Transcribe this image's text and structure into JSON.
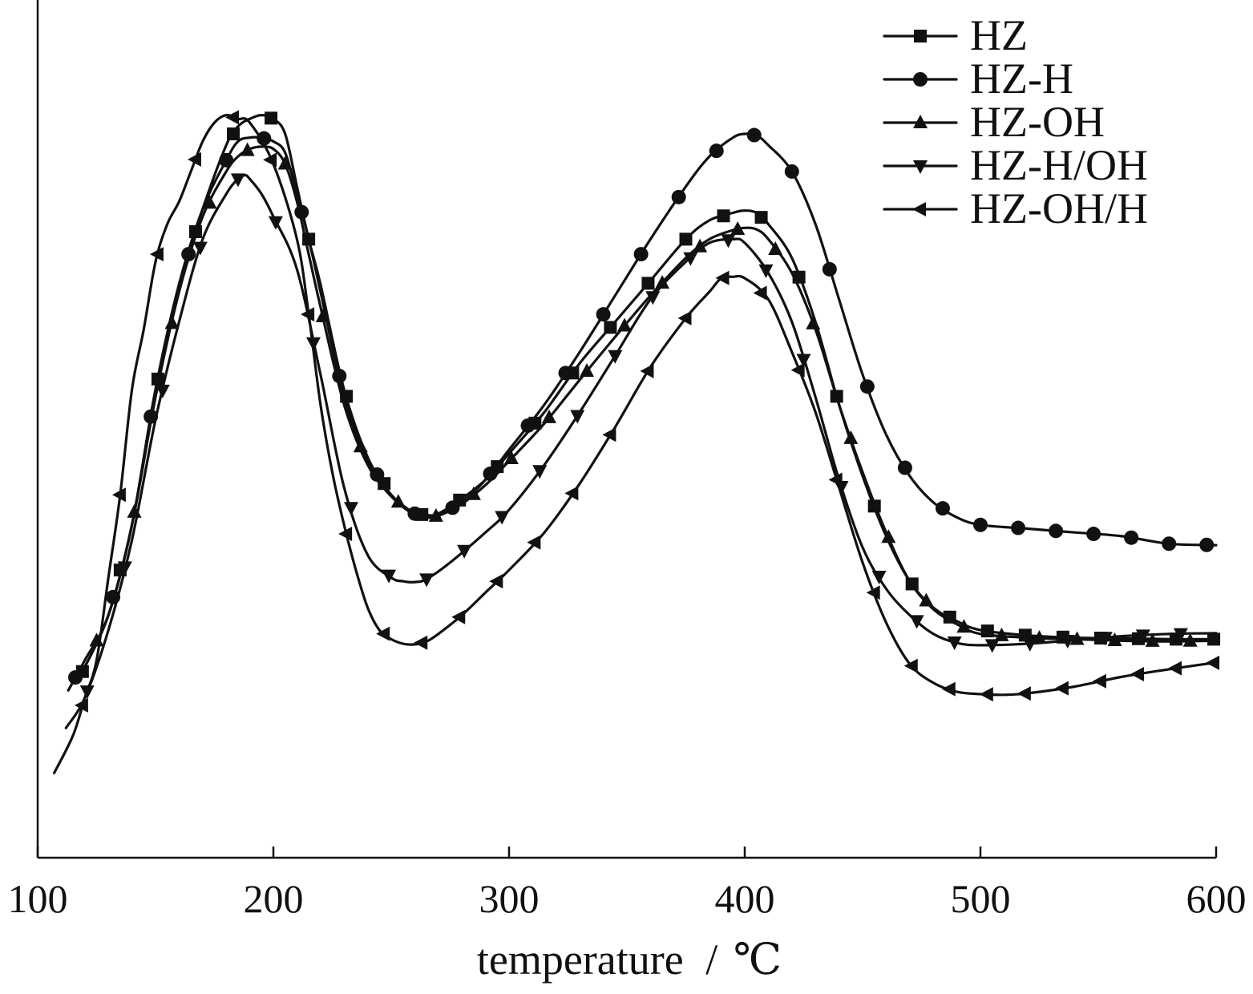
{
  "chart_data": {
    "type": "line",
    "title": "",
    "xlabel": "temperature",
    "xlabel_unit": "℃",
    "ylabel": "",
    "xlim": [
      100,
      600
    ],
    "ylim": [
      0,
      100
    ],
    "xticks": [
      "100",
      "200",
      "300",
      "400",
      "500",
      "600"
    ],
    "grid": false,
    "legend_position": "top-right",
    "series": [
      {
        "name": "HZ",
        "marker": "square",
        "points": [
          [
            119,
            20.5
          ],
          [
            130,
            28
          ],
          [
            140,
            40
          ],
          [
            150,
            58
          ],
          [
            160,
            72
          ],
          [
            170,
            82
          ],
          [
            180,
            90.5
          ],
          [
            185,
            93
          ],
          [
            190,
            94
          ],
          [
            195,
            94.5
          ],
          [
            200,
            94
          ],
          [
            205,
            92
          ],
          [
            210,
            85
          ],
          [
            215,
            78
          ],
          [
            220,
            72
          ],
          [
            230,
            58
          ],
          [
            240,
            49
          ],
          [
            250,
            44
          ],
          [
            260,
            41.5
          ],
          [
            265,
            41.3
          ],
          [
            270,
            41.5
          ],
          [
            280,
            43.5
          ],
          [
            290,
            46
          ],
          [
            300,
            49.5
          ],
          [
            315,
            55
          ],
          [
            330,
            61.5
          ],
          [
            345,
            67
          ],
          [
            360,
            72.5
          ],
          [
            375,
            78
          ],
          [
            385,
            80.5
          ],
          [
            395,
            81.5
          ],
          [
            400,
            81.8
          ],
          [
            405,
            81.5
          ],
          [
            410,
            80
          ],
          [
            420,
            75.5
          ],
          [
            430,
            67
          ],
          [
            440,
            56
          ],
          [
            450,
            46.5
          ],
          [
            460,
            38.5
          ],
          [
            470,
            32.5
          ],
          [
            480,
            29
          ],
          [
            490,
            27.2
          ],
          [
            500,
            26
          ],
          [
            520,
            25.3
          ],
          [
            540,
            25
          ],
          [
            560,
            24.9
          ],
          [
            580,
            24.8
          ],
          [
            600,
            24.8
          ]
        ]
      },
      {
        "name": "HZ-H",
        "marker": "circle",
        "points": [
          [
            113,
            18
          ],
          [
            120,
            22
          ],
          [
            130,
            28
          ],
          [
            140,
            40
          ],
          [
            150,
            58
          ],
          [
            160,
            72
          ],
          [
            170,
            82
          ],
          [
            180,
            88.5
          ],
          [
            185,
            91
          ],
          [
            190,
            91.5
          ],
          [
            195,
            91.5
          ],
          [
            200,
            91
          ],
          [
            205,
            89.5
          ],
          [
            210,
            84
          ],
          [
            215,
            78
          ],
          [
            220,
            71
          ],
          [
            230,
            57
          ],
          [
            240,
            48.5
          ],
          [
            250,
            44
          ],
          [
            260,
            41.5
          ],
          [
            265,
            41
          ],
          [
            270,
            41.2
          ],
          [
            280,
            43
          ],
          [
            290,
            46
          ],
          [
            300,
            50
          ],
          [
            315,
            56
          ],
          [
            330,
            63
          ],
          [
            345,
            70.5
          ],
          [
            360,
            78
          ],
          [
            375,
            85
          ],
          [
            385,
            89
          ],
          [
            395,
            91.5
          ],
          [
            400,
            92
          ],
          [
            405,
            91.8
          ],
          [
            410,
            90.5
          ],
          [
            420,
            87
          ],
          [
            430,
            80
          ],
          [
            440,
            70
          ],
          [
            450,
            60
          ],
          [
            460,
            52
          ],
          [
            470,
            46.5
          ],
          [
            480,
            43
          ],
          [
            490,
            41
          ],
          [
            500,
            40
          ],
          [
            520,
            39.5
          ],
          [
            540,
            39
          ],
          [
            560,
            38.5
          ],
          [
            580,
            37.5
          ],
          [
            600,
            37.3
          ]
        ]
      },
      {
        "name": "HZ-OH",
        "marker": "triangle-up",
        "points": [
          [
            119,
            20.5
          ],
          [
            130,
            28
          ],
          [
            140,
            40
          ],
          [
            150,
            57
          ],
          [
            160,
            71
          ],
          [
            170,
            81
          ],
          [
            180,
            87
          ],
          [
            185,
            89
          ],
          [
            190,
            90
          ],
          [
            195,
            90.3
          ],
          [
            200,
            90
          ],
          [
            205,
            88
          ],
          [
            210,
            83
          ],
          [
            215,
            76
          ],
          [
            220,
            69
          ],
          [
            230,
            56
          ],
          [
            240,
            48
          ],
          [
            250,
            43.8
          ],
          [
            260,
            41.3
          ],
          [
            265,
            41
          ],
          [
            270,
            41.2
          ],
          [
            280,
            42.8
          ],
          [
            290,
            45.3
          ],
          [
            300,
            48.5
          ],
          [
            315,
            53.5
          ],
          [
            330,
            59.3
          ],
          [
            345,
            65
          ],
          [
            360,
            70.5
          ],
          [
            375,
            75.5
          ],
          [
            385,
            78
          ],
          [
            395,
            79.2
          ],
          [
            400,
            79.5
          ],
          [
            405,
            79.3
          ],
          [
            410,
            78
          ],
          [
            420,
            73.5
          ],
          [
            430,
            66
          ],
          [
            440,
            56
          ],
          [
            450,
            47
          ],
          [
            460,
            39
          ],
          [
            470,
            32.5
          ],
          [
            480,
            28.8
          ],
          [
            490,
            26.8
          ],
          [
            500,
            25.5
          ],
          [
            520,
            25
          ],
          [
            540,
            24.8
          ],
          [
            560,
            24.6
          ],
          [
            580,
            24.5
          ],
          [
            600,
            24.6
          ]
        ]
      },
      {
        "name": "HZ-H/OH",
        "marker": "triangle-down",
        "points": [
          [
            112,
            13
          ],
          [
            120,
            17
          ],
          [
            130,
            26
          ],
          [
            140,
            38
          ],
          [
            150,
            54
          ],
          [
            160,
            67
          ],
          [
            170,
            78
          ],
          [
            180,
            84
          ],
          [
            185,
            86
          ],
          [
            188,
            86.5
          ],
          [
            190,
            86
          ],
          [
            195,
            84
          ],
          [
            200,
            81
          ],
          [
            210,
            74
          ],
          [
            220,
            60
          ],
          [
            230,
            45
          ],
          [
            240,
            36
          ],
          [
            250,
            33
          ],
          [
            255,
            32.5
          ],
          [
            260,
            32.4
          ],
          [
            265,
            32.8
          ],
          [
            275,
            35
          ],
          [
            290,
            39
          ],
          [
            300,
            42
          ],
          [
            315,
            48
          ],
          [
            330,
            55
          ],
          [
            345,
            62.5
          ],
          [
            360,
            70
          ],
          [
            375,
            75
          ],
          [
            385,
            77.5
          ],
          [
            395,
            78
          ],
          [
            400,
            77.5
          ],
          [
            410,
            73.5
          ],
          [
            420,
            67
          ],
          [
            430,
            57
          ],
          [
            440,
            46
          ],
          [
            450,
            37
          ],
          [
            460,
            31.5
          ],
          [
            470,
            28
          ],
          [
            480,
            25.5
          ],
          [
            490,
            24.3
          ],
          [
            500,
            24
          ],
          [
            520,
            24.2
          ],
          [
            540,
            24.7
          ],
          [
            560,
            25.2
          ],
          [
            580,
            25.5
          ],
          [
            600,
            25.6
          ]
        ]
      },
      {
        "name": "HZ-OH/H",
        "marker": "triangle-left",
        "points": [
          [
            107,
            7
          ],
          [
            115,
            12
          ],
          [
            120,
            17
          ],
          [
            125,
            22
          ],
          [
            130,
            33
          ],
          [
            135,
            44
          ],
          [
            140,
            58
          ],
          [
            145,
            66
          ],
          [
            150,
            75
          ],
          [
            155,
            80
          ],
          [
            160,
            83
          ],
          [
            165,
            87
          ],
          [
            170,
            91
          ],
          [
            175,
            93.5
          ],
          [
            180,
            94.5
          ],
          [
            185,
            94
          ],
          [
            190,
            93.5
          ],
          [
            200,
            88
          ],
          [
            210,
            78
          ],
          [
            215,
            68
          ],
          [
            220,
            56
          ],
          [
            225,
            47
          ],
          [
            230,
            40
          ],
          [
            235,
            34
          ],
          [
            240,
            29
          ],
          [
            245,
            26
          ],
          [
            250,
            24.8
          ],
          [
            255,
            24.2
          ],
          [
            260,
            24.1
          ],
          [
            265,
            24.5
          ],
          [
            270,
            25.5
          ],
          [
            280,
            28
          ],
          [
            290,
            31
          ],
          [
            300,
            34
          ],
          [
            315,
            39
          ],
          [
            330,
            45.5
          ],
          [
            345,
            53
          ],
          [
            360,
            61
          ],
          [
            375,
            67.5
          ],
          [
            385,
            71
          ],
          [
            390,
            72.8
          ],
          [
            395,
            73
          ],
          [
            400,
            72.8
          ],
          [
            410,
            70
          ],
          [
            420,
            63
          ],
          [
            430,
            55
          ],
          [
            440,
            45
          ],
          [
            450,
            35
          ],
          [
            460,
            27
          ],
          [
            470,
            21.5
          ],
          [
            480,
            19
          ],
          [
            490,
            17.8
          ],
          [
            500,
            17.5
          ],
          [
            510,
            17.4
          ],
          [
            520,
            17.6
          ],
          [
            540,
            18.5
          ],
          [
            560,
            19.8
          ],
          [
            580,
            20.8
          ],
          [
            600,
            21.7
          ]
        ]
      }
    ]
  }
}
